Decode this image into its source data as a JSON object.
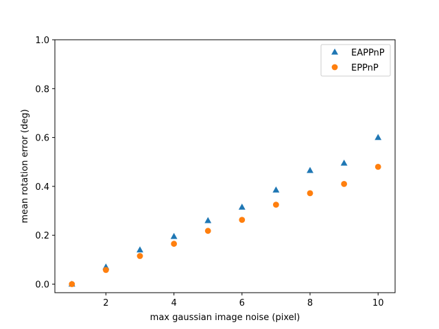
{
  "chart_data": {
    "type": "scatter",
    "title": "",
    "xlabel": "max gaussian image noise (pixel)",
    "ylabel": "mean rotation error (deg)",
    "xlim": [
      0.5,
      10.5
    ],
    "ylim": [
      -0.035,
      1.0
    ],
    "xticks": [
      "2",
      "4",
      "6",
      "8",
      "10"
    ],
    "xtick_values": [
      2,
      4,
      6,
      8,
      10
    ],
    "yticks": [
      "0.0",
      "0.2",
      "0.4",
      "0.6",
      "0.8",
      "1.0"
    ],
    "ytick_values": [
      0.0,
      0.2,
      0.4,
      0.6,
      0.8,
      1.0
    ],
    "grid": false,
    "legend_position": "top-right",
    "series": [
      {
        "name": "EAPPnP",
        "marker": "triangle",
        "color": "#1f77b4",
        "x": [
          1,
          2,
          3,
          4,
          5,
          6,
          7,
          8,
          9,
          10
        ],
        "y": [
          0.0,
          0.07,
          0.14,
          0.195,
          0.26,
          0.315,
          0.385,
          0.465,
          0.495,
          0.6
        ]
      },
      {
        "name": "EPPnP",
        "marker": "circle",
        "color": "#ff7f0e",
        "x": [
          1,
          2,
          3,
          4,
          5,
          6,
          7,
          8,
          9,
          10
        ],
        "y": [
          0.0,
          0.058,
          0.115,
          0.165,
          0.218,
          0.263,
          0.325,
          0.372,
          0.41,
          0.48
        ]
      }
    ]
  }
}
